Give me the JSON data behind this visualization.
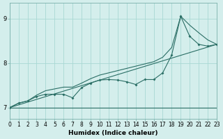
{
  "xlabel": "Humidex (Indice chaleur)",
  "bg_color": "#d4eeec",
  "grid_color": "#a8d8d4",
  "line_color": "#2a6e65",
  "x_values": [
    0,
    1,
    2,
    3,
    4,
    5,
    6,
    7,
    8,
    9,
    10,
    11,
    12,
    13,
    14,
    15,
    16,
    17,
    18,
    19,
    20,
    21,
    22,
    23
  ],
  "y_main": [
    7.0,
    7.1,
    7.15,
    7.25,
    7.3,
    7.3,
    7.3,
    7.22,
    7.45,
    7.55,
    7.62,
    7.63,
    7.62,
    7.58,
    7.52,
    7.63,
    7.63,
    7.78,
    8.18,
    9.05,
    8.6,
    8.42,
    8.38,
    8.42
  ],
  "y_min": [
    7.0,
    7.0,
    7.0,
    7.0,
    7.0,
    7.0,
    7.0,
    7.0,
    7.0,
    7.0,
    7.0,
    7.0,
    7.0,
    7.0,
    7.0,
    7.0,
    7.0,
    7.0,
    7.0,
    7.0,
    7.0,
    7.0,
    7.0,
    7.0
  ],
  "y_max": [
    7.0,
    7.1,
    7.15,
    7.28,
    7.38,
    7.42,
    7.46,
    7.46,
    7.55,
    7.65,
    7.73,
    7.78,
    7.83,
    7.88,
    7.93,
    7.98,
    8.03,
    8.13,
    8.35,
    9.05,
    8.85,
    8.68,
    8.52,
    8.42
  ],
  "y_trend_start": 7.0,
  "y_trend_end": 8.42,
  "xlim": [
    0,
    23
  ],
  "ylim": [
    6.75,
    9.35
  ],
  "yticks": [
    7,
    8,
    9
  ],
  "xticks": [
    0,
    1,
    2,
    3,
    4,
    5,
    6,
    7,
    8,
    9,
    10,
    11,
    12,
    13,
    14,
    15,
    16,
    17,
    18,
    19,
    20,
    21,
    22,
    23
  ],
  "xtick_labels": [
    "0",
    "1",
    "2",
    "3",
    "4",
    "5",
    "6",
    "7",
    "8",
    "9",
    "10",
    "11",
    "12",
    "13",
    "14",
    "15",
    "16",
    "17",
    "18",
    "19",
    "20",
    "21",
    "22",
    "23"
  ],
  "tick_fontsize": 5.5,
  "label_fontsize": 6.5
}
